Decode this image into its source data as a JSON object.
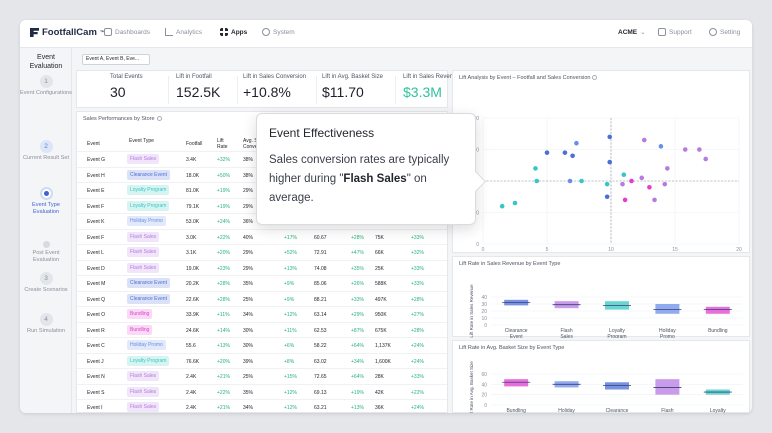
{
  "header": {
    "brand": "FootfallCam",
    "brand_tm": "™",
    "nav": [
      {
        "label": "Dashboards",
        "icon": "dashboard-icon",
        "active": false
      },
      {
        "label": "Analytics",
        "icon": "bar-chart-icon",
        "active": false
      },
      {
        "label": "Apps",
        "icon": "apps-grid-icon",
        "active": true
      },
      {
        "label": "System",
        "icon": "system-icon",
        "active": false
      }
    ],
    "account": "ACME",
    "support": "Support",
    "setting": "Setting"
  },
  "sidebar": {
    "title": "Event Evaluation",
    "steps": [
      {
        "num": "1",
        "label": "Event Configurations",
        "state": "todo"
      },
      {
        "num": "2",
        "label": "Current Result Set",
        "state": "done"
      },
      {
        "num": "",
        "label": "Event Type Evaluation",
        "state": "active"
      },
      {
        "num": "",
        "label": "Post Event Evaluation",
        "state": "dot"
      },
      {
        "num": "3",
        "label": "Create Scenarios",
        "state": "todo"
      },
      {
        "num": "4",
        "label": "Run Simulation",
        "state": "todo"
      }
    ]
  },
  "filter": {
    "value": "Event A, Event B, Eve..."
  },
  "kpis": [
    {
      "label": "Total Events",
      "value": "30",
      "color": "dark"
    },
    {
      "label": "Lift in Footfall",
      "value": "152.5K",
      "color": "dark"
    },
    {
      "label": "Lift in Sales Conversion",
      "value": "+10.8%",
      "color": "dark"
    },
    {
      "label": "Lift in Avg. Basket Size",
      "value": "$11.70",
      "color": "dark"
    },
    {
      "label": "Lift in Sales Revenue",
      "value": "$3.3M",
      "color": "green"
    }
  ],
  "table": {
    "title": "Sales Performances by Store",
    "headers": [
      "Event",
      "Event Type",
      "Footfall",
      "Lift Rate",
      "Avg. S Conve"
    ],
    "rows": [
      [
        "Event G",
        "Flash Sales",
        "3.4K",
        "+32%",
        "38%",
        "",
        "",
        "",
        "",
        ""
      ],
      [
        "Event H",
        "Clearance Event",
        "18.0K",
        "+50%",
        "38%",
        "",
        "",
        "",
        "",
        ""
      ],
      [
        "Event E",
        "Loyalty Program",
        "81.0K",
        "+19%",
        "29%",
        "",
        "",
        "",
        "",
        ""
      ],
      [
        "Event F",
        "Loyalty Program",
        "79.1K",
        "+19%",
        "29%",
        "",
        "",
        "",
        "",
        ""
      ],
      [
        "Event K",
        "Holiday Promo",
        "53.0K",
        "+24%",
        "36%",
        "",
        "",
        "",
        "",
        ""
      ],
      [
        "Event F",
        "Flash Sales",
        "3.0K",
        "+22%",
        "40%",
        "+17%",
        "60.67",
        "+28%",
        "75K",
        "+33%"
      ],
      [
        "Event L",
        "Flash Sales",
        "3.1K",
        "+20%",
        "29%",
        "+52%",
        "72.91",
        "+47%",
        "66K",
        "+32%"
      ],
      [
        "Event D",
        "Flash Sales",
        "19.0K",
        "+23%",
        "29%",
        "+13%",
        "74.08",
        "+35%",
        "25K",
        "+33%"
      ],
      [
        "Event M",
        "Clearance Event",
        "20.2K",
        "+28%",
        "35%",
        "+9%",
        "85.06",
        "+26%",
        "588K",
        "+33%"
      ],
      [
        "Event Q",
        "Clearance Event",
        "22.6K",
        "+28%",
        "25%",
        "+9%",
        "88.21",
        "+33%",
        "497K",
        "+28%"
      ],
      [
        "Event O",
        "Bundling",
        "33.9K",
        "+11%",
        "34%",
        "+12%",
        "63.14",
        "+29%",
        "950K",
        "+27%"
      ],
      [
        "Event R",
        "Bundling",
        "24.6K",
        "+14%",
        "30%",
        "+11%",
        "62.53",
        "+87%",
        "675K",
        "+28%"
      ],
      [
        "Event C",
        "Holiday Promo",
        "55.6",
        "+13%",
        "30%",
        "+6%",
        "58.22",
        "+64%",
        "1,137K",
        "+24%"
      ],
      [
        "Event J",
        "Loyalty Program",
        "76.6K",
        "+20%",
        "39%",
        "+8%",
        "63.02",
        "+34%",
        "1,600K",
        "+24%"
      ],
      [
        "Event N",
        "Flash Sales",
        "2.4K",
        "+21%",
        "25%",
        "+15%",
        "72.65",
        "+64%",
        "28K",
        "+33%"
      ],
      [
        "Event S",
        "Flash Sales",
        "2.4K",
        "+22%",
        "35%",
        "+12%",
        "69.13",
        "+19%",
        "42K",
        "+22%"
      ],
      [
        "Event I",
        "Flash Sales",
        "2.4K",
        "+21%",
        "34%",
        "+12%",
        "63.21",
        "+13%",
        "36K",
        "+24%"
      ]
    ]
  },
  "tooltip": {
    "title": "Event Effectiveness",
    "body_pre": "Sales conversion rates are typically higher during \"",
    "body_bold": "Flash Sales",
    "body_post": "\" on average."
  },
  "colors": {
    "Flash Sales": "#b57be0",
    "Clearance Event": "#4a6fd6",
    "Loyalty Program": "#35c8c2",
    "Holiday Promo": "#6b8fe8",
    "Bundling": "#e23fcf",
    "accent": "#3d63d2",
    "green": "#2fc29d"
  },
  "chart_data": [
    {
      "type": "scatter",
      "title": "Lift Analysis by Event – Footfall and Sales Conversion",
      "xlabel": "Lift Rate in Sales Conversion (%)",
      "ylabel": "",
      "xlim": [
        0,
        20
      ],
      "ylim": [
        0,
        40
      ],
      "xticks": [
        0,
        5,
        10,
        15,
        20
      ],
      "yticks": [
        0,
        10,
        20,
        30,
        40
      ],
      "ref_lines": {
        "x": 10,
        "y": 20
      },
      "points": [
        {
          "x": 1.5,
          "y": 12,
          "type": "Loyalty Program"
        },
        {
          "x": 2.5,
          "y": 13,
          "type": "Loyalty Program"
        },
        {
          "x": 4.2,
          "y": 20,
          "type": "Loyalty Program"
        },
        {
          "x": 4.1,
          "y": 24,
          "type": "Loyalty Program"
        },
        {
          "x": 5.0,
          "y": 29,
          "type": "Clearance Event"
        },
        {
          "x": 6.4,
          "y": 29,
          "type": "Clearance Event"
        },
        {
          "x": 7.0,
          "y": 28,
          "type": "Clearance Event"
        },
        {
          "x": 7.3,
          "y": 32,
          "type": "Holiday Promo"
        },
        {
          "x": 6.8,
          "y": 20,
          "type": "Holiday Promo"
        },
        {
          "x": 7.7,
          "y": 20,
          "type": "Loyalty Program"
        },
        {
          "x": 9.9,
          "y": 34,
          "type": "Clearance Event"
        },
        {
          "x": 9.9,
          "y": 26,
          "type": "Clearance Event"
        },
        {
          "x": 9.7,
          "y": 19,
          "type": "Loyalty Program"
        },
        {
          "x": 9.7,
          "y": 15,
          "type": "Clearance Event"
        },
        {
          "x": 10.9,
          "y": 19,
          "type": "Flash Sales"
        },
        {
          "x": 11.0,
          "y": 22,
          "type": "Loyalty Program"
        },
        {
          "x": 11.6,
          "y": 20,
          "type": "Bundling"
        },
        {
          "x": 11.1,
          "y": 14,
          "type": "Bundling"
        },
        {
          "x": 12.4,
          "y": 21,
          "type": "Flash Sales"
        },
        {
          "x": 13.0,
          "y": 18,
          "type": "Bundling"
        },
        {
          "x": 12.6,
          "y": 33,
          "type": "Flash Sales"
        },
        {
          "x": 13.9,
          "y": 31,
          "type": "Holiday Promo"
        },
        {
          "x": 13.4,
          "y": 14,
          "type": "Flash Sales"
        },
        {
          "x": 14.2,
          "y": 19,
          "type": "Flash Sales"
        },
        {
          "x": 14.4,
          "y": 24,
          "type": "Flash Sales"
        },
        {
          "x": 15.8,
          "y": 30,
          "type": "Flash Sales"
        },
        {
          "x": 16.9,
          "y": 30,
          "type": "Flash Sales"
        },
        {
          "x": 17.4,
          "y": 27,
          "type": "Flash Sales"
        }
      ]
    },
    {
      "type": "bar",
      "title": "Lift Rate in Sales Revenue by Event Type",
      "ylabel": "Lift Rate in Sales Revenue",
      "ylim": [
        0,
        40
      ],
      "yticks": [
        0,
        10,
        20,
        30,
        40
      ],
      "categories": [
        "Clearance Event",
        "Flash Sales",
        "Loyalty Program",
        "Holiday Promo",
        "Bundling"
      ],
      "boxes": [
        {
          "low": 28,
          "high": 36,
          "median": 32,
          "type": "Clearance Event"
        },
        {
          "low": 24,
          "high": 34,
          "median": 29,
          "type": "Flash Sales"
        },
        {
          "low": 22,
          "high": 34,
          "median": 28,
          "type": "Loyalty Program"
        },
        {
          "low": 16,
          "high": 30,
          "median": 22,
          "type": "Holiday Promo"
        },
        {
          "low": 16,
          "high": 26,
          "median": 22,
          "type": "Bundling"
        }
      ]
    },
    {
      "type": "bar",
      "title": "Lift Rate in Avg. Basket Size by Event Type",
      "ylabel": "Lift Rate in Avg. Basket Size",
      "ylim": [
        0,
        60
      ],
      "yticks": [
        0,
        20,
        40,
        60
      ],
      "categories": [
        "Bundling",
        "Holiday",
        "Clearance",
        "Flash",
        "Loyalty"
      ],
      "boxes": [
        {
          "low": 36,
          "high": 50,
          "median": 44,
          "type": "Bundling"
        },
        {
          "low": 34,
          "high": 46,
          "median": 40,
          "type": "Holiday Promo"
        },
        {
          "low": 30,
          "high": 44,
          "median": 38,
          "type": "Clearance Event"
        },
        {
          "low": 20,
          "high": 50,
          "median": 34,
          "type": "Flash Sales"
        },
        {
          "low": 20,
          "high": 30,
          "median": 25,
          "type": "Loyalty Program"
        }
      ]
    }
  ]
}
